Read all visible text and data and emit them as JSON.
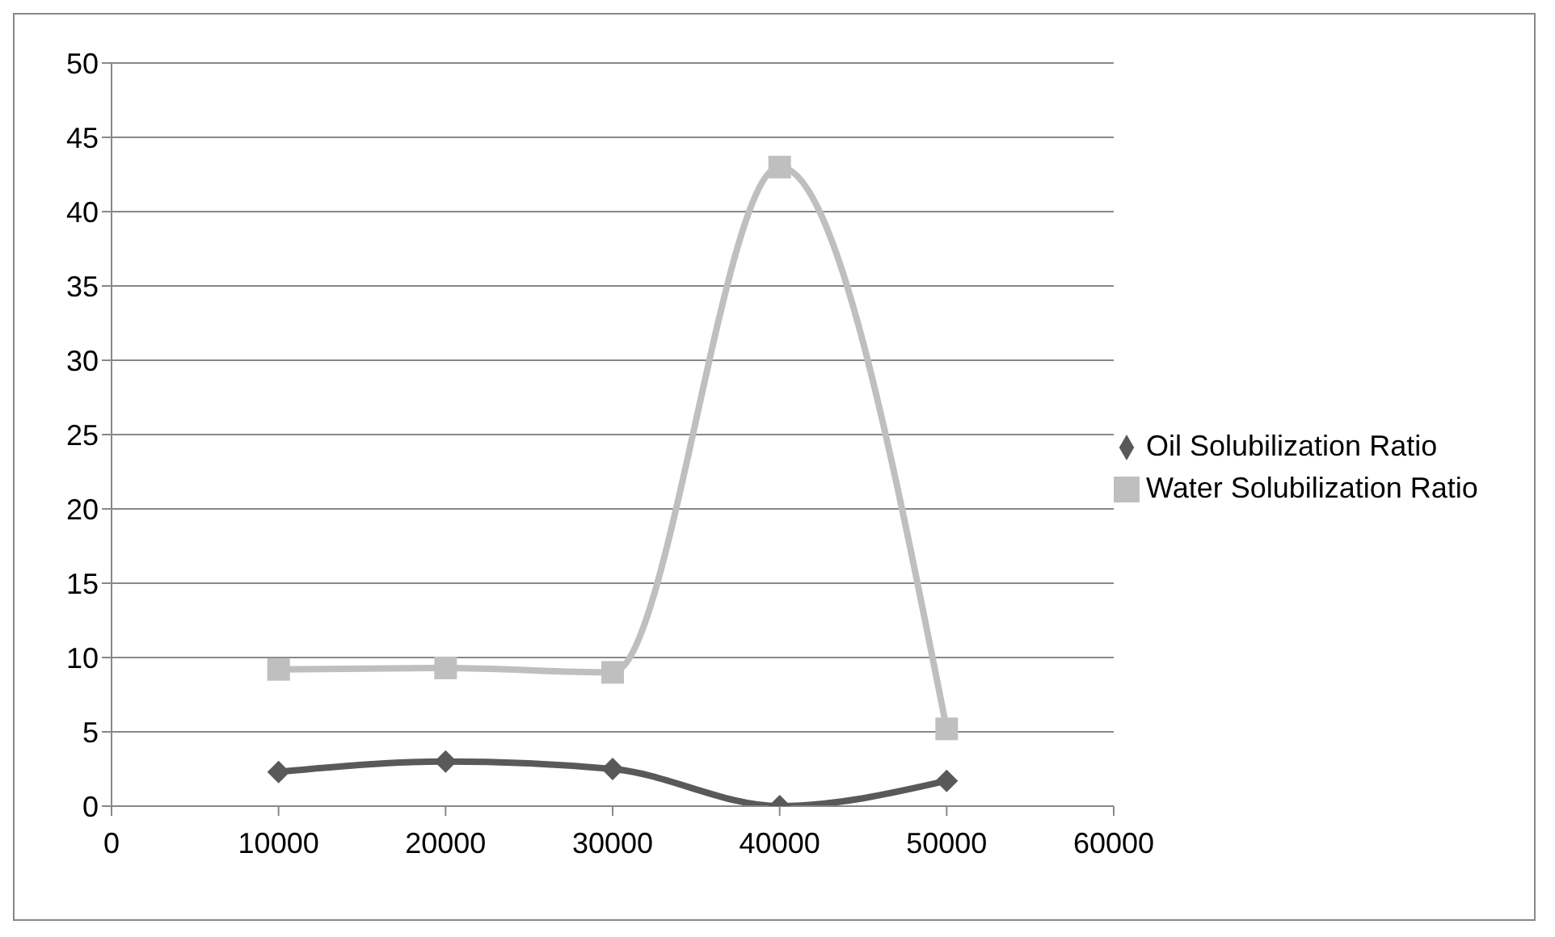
{
  "chart_data": {
    "type": "line",
    "x": [
      10000,
      20000,
      30000,
      40000,
      50000
    ],
    "xlim": [
      0,
      60000
    ],
    "xticks": [
      0,
      10000,
      20000,
      30000,
      40000,
      50000,
      60000
    ],
    "ylim": [
      0,
      50
    ],
    "yticks": [
      0,
      5,
      10,
      15,
      20,
      25,
      30,
      35,
      40,
      45,
      50
    ],
    "grid": "y",
    "legend": "right",
    "series": [
      {
        "name": "Oil Solubilization Ratio",
        "color": "#595959",
        "marker": "diamond",
        "values": [
          2.3,
          3.0,
          2.5,
          0,
          1.7
        ]
      },
      {
        "name": "Water Solubilization Ratio",
        "color": "#bfbfbf",
        "marker": "square",
        "values": [
          9.2,
          9.3,
          9.0,
          43,
          5.2
        ]
      }
    ]
  }
}
